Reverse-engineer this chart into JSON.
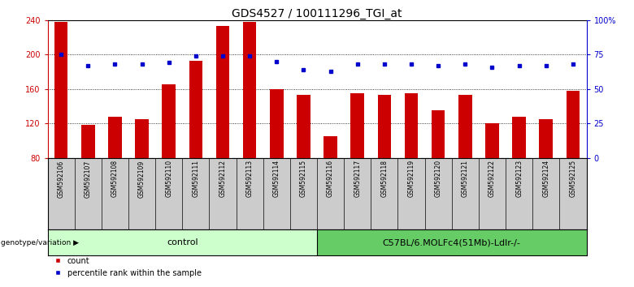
{
  "title": "GDS4527 / 100111296_TGI_at",
  "categories": [
    "GSM592106",
    "GSM592107",
    "GSM592108",
    "GSM592109",
    "GSM592110",
    "GSM592111",
    "GSM592112",
    "GSM592113",
    "GSM592114",
    "GSM592115",
    "GSM592116",
    "GSM592117",
    "GSM592118",
    "GSM592119",
    "GSM592120",
    "GSM592121",
    "GSM592122",
    "GSM592123",
    "GSM592124",
    "GSM592125"
  ],
  "counts": [
    238,
    118,
    128,
    125,
    165,
    193,
    233,
    238,
    160,
    153,
    105,
    155,
    153,
    155,
    135,
    153,
    120,
    128,
    125,
    158
  ],
  "percentile_ranks": [
    75,
    67,
    68,
    68,
    69,
    74,
    74,
    74,
    70,
    64,
    63,
    68,
    68,
    68,
    67,
    68,
    66,
    67,
    67,
    68
  ],
  "bar_color": "#cc0000",
  "dot_color": "#0000cc",
  "ylim_left": [
    80,
    240
  ],
  "ylim_right": [
    0,
    100
  ],
  "yticks_left": [
    80,
    120,
    160,
    200,
    240
  ],
  "yticks_right": [
    0,
    25,
    50,
    75,
    100
  ],
  "ytick_labels_right": [
    "0",
    "25",
    "50",
    "75",
    "100%"
  ],
  "grid_values": [
    120,
    160,
    200
  ],
  "n_control": 10,
  "group1_label": "control",
  "group2_label": "C57BL/6.MOLFc4(51Mb)-Ldlr-/-",
  "group1_color": "#ccffcc",
  "group2_color": "#66cc66",
  "genotype_label": "genotype/variation",
  "legend_count_label": "count",
  "legend_pct_label": "percentile rank within the sample",
  "bg_color": "#cccccc",
  "title_fontsize": 10,
  "tick_fontsize": 7,
  "axis_left_color": "#cc0000",
  "axis_right_color": "#0000cc",
  "bar_width": 0.5
}
